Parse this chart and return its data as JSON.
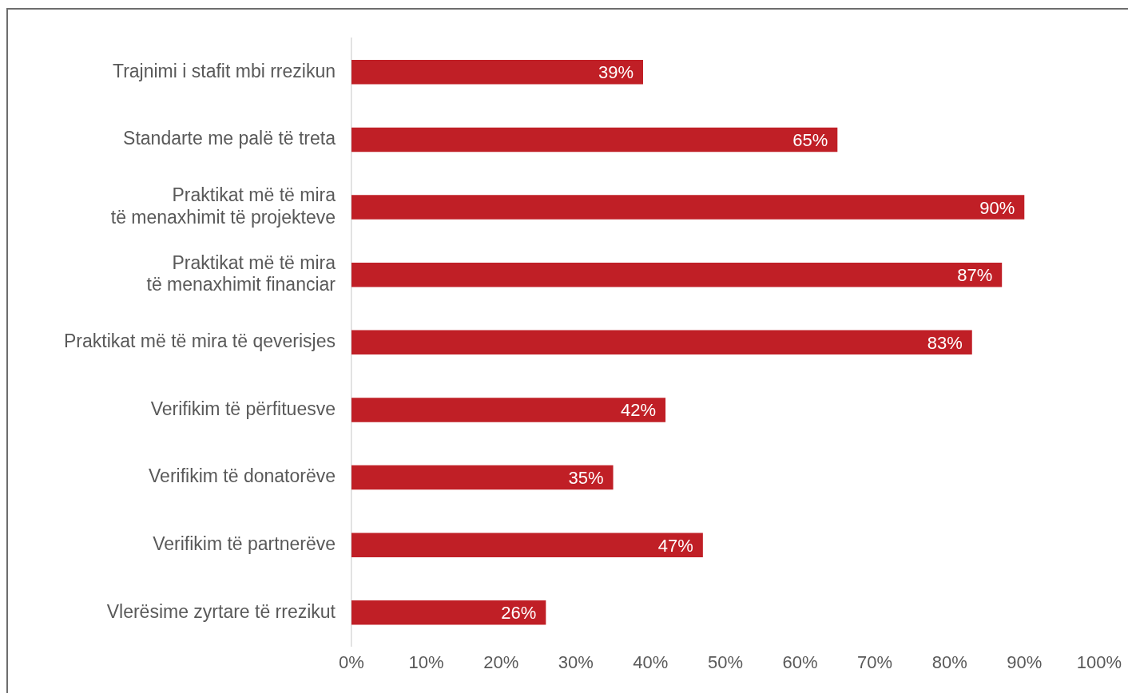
{
  "chart_data": {
    "type": "bar",
    "orientation": "horizontal",
    "categories": [
      "Trajnimi i stafit mbi rrezikun",
      "Standarte me palë të treta",
      "Praktikat më të mira\ntë menaxhimit të projekteve",
      "Praktikat më të mira\ntë menaxhimit financiar",
      "Praktikat më të mira të qeverisjes",
      "Verifikim të përfituesve",
      "Verifikim të donatorëve",
      "Verifikim të partnerëve",
      "Vlerësime zyrtare të rrezikut"
    ],
    "values": [
      39,
      65,
      90,
      87,
      83,
      42,
      35,
      47,
      26
    ],
    "color": "#c01f26",
    "xlim": [
      0,
      100
    ],
    "xticks": [
      {
        "value": 0,
        "label": "0%"
      },
      {
        "value": 10,
        "label": "10%"
      },
      {
        "value": 20,
        "label": "20%"
      },
      {
        "value": 30,
        "label": "30%"
      },
      {
        "value": 40,
        "label": "40%"
      },
      {
        "value": 50,
        "label": "50%"
      },
      {
        "value": 60,
        "label": "60%"
      },
      {
        "value": 70,
        "label": "70%"
      },
      {
        "value": 80,
        "label": "80%"
      },
      {
        "value": 90,
        "label": "90%"
      },
      {
        "value": 100,
        "label": "100%"
      }
    ],
    "value_labels": [
      "39%",
      "65%",
      "90%",
      "87%",
      "83%",
      "42%",
      "35%",
      "47%",
      "26%"
    ],
    "grid": false,
    "legend": false
  }
}
